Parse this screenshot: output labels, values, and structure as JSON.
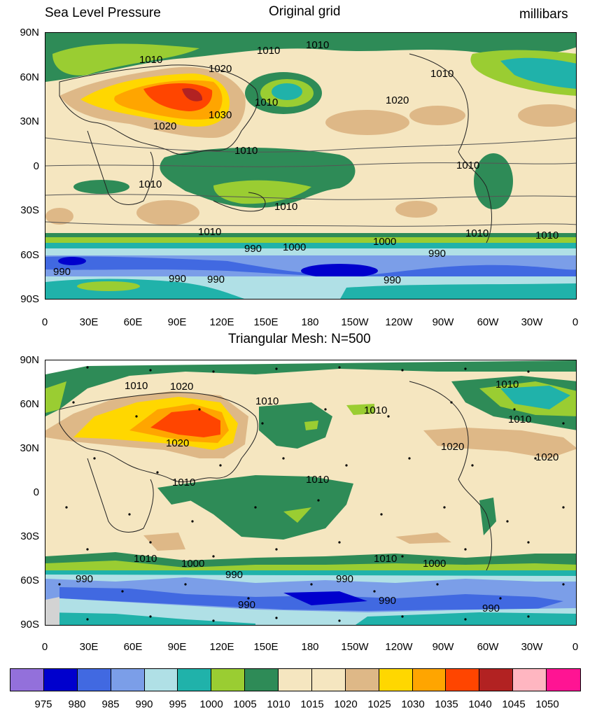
{
  "panel1": {
    "left_title": "Sea Level Pressure",
    "center_title": "Original grid",
    "right_title": "millibars",
    "lat_ticks": [
      "90N",
      "60N",
      "30N",
      "0",
      "30S",
      "60S",
      "90S"
    ],
    "lon_ticks": [
      "0",
      "30E",
      "60E",
      "90E",
      "120E",
      "150E",
      "180",
      "150W",
      "120W",
      "90W",
      "60W",
      "30W",
      "0"
    ],
    "contour_labels": [
      "1010",
      "1010",
      "1010",
      "1020",
      "1010",
      "1010",
      "1020",
      "1030",
      "1020",
      "1010",
      "1010",
      "1010",
      "1010",
      "1010",
      "1010",
      "1000",
      "1000",
      "990",
      "990",
      "990",
      "990",
      "990",
      "990",
      "1010"
    ]
  },
  "panel2": {
    "center_title": "Triangular Mesh: N=500",
    "lat_ticks": [
      "90N",
      "60N",
      "30N",
      "0",
      "30S",
      "60S",
      "90S"
    ],
    "lon_ticks": [
      "0",
      "30E",
      "60E",
      "90E",
      "120E",
      "150E",
      "180",
      "150W",
      "120W",
      "90W",
      "60W",
      "30W",
      "0"
    ],
    "contour_labels": [
      "1010",
      "1020",
      "1010",
      "1010",
      "1010",
      "1010",
      "1020",
      "1020",
      "1020",
      "1010",
      "1010",
      "1010",
      "1000",
      "1010",
      "1000",
      "990",
      "990",
      "990",
      "990",
      "990",
      "990"
    ]
  },
  "colorbar": {
    "labels": [
      "975",
      "980",
      "985",
      "990",
      "995",
      "1000",
      "1005",
      "1010",
      "1015",
      "1020",
      "1025",
      "1030",
      "1035",
      "1040",
      "1045",
      "1050"
    ],
    "colors": [
      "#9370db",
      "#0000cd",
      "#4169e1",
      "#7b9ee8",
      "#b0e0e6",
      "#20b2aa",
      "#9acd32",
      "#2e8b57",
      "#f5e6c0",
      "#f5e6c0",
      "#deb887",
      "#ffd700",
      "#ffa500",
      "#ff4500",
      "#b22222",
      "#ffb6c1",
      "#ff1493"
    ]
  },
  "colors": {
    "land_border": "#000000",
    "background_base": "#f5e6c0",
    "missing_region": "#d3d3d3"
  }
}
